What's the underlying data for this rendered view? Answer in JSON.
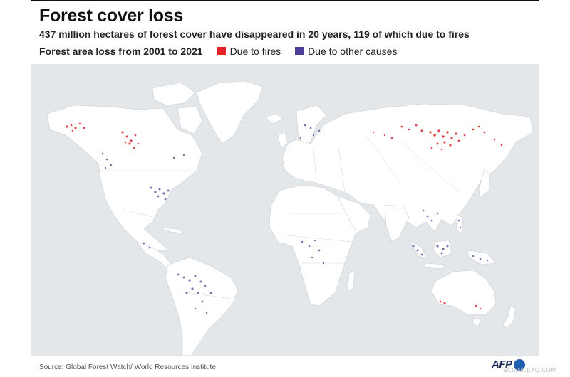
{
  "title": "Forest cover loss",
  "subtitle": "437 million hectares of forest cover have disappeared in 20 years, 119 of which due to fires",
  "legend": {
    "title": "Forest area loss from 2001 to 2021",
    "items": [
      {
        "label": "Due to fires",
        "color": "#e0262a"
      },
      {
        "label": "Due to other causes",
        "color": "#4b3f9a"
      }
    ]
  },
  "source": "Source: Global Forest Watch/ World Resources Institute",
  "logo": "AFP",
  "watermark": "SCIENCEAQ.COM",
  "colors": {
    "ocean": "#e4e7ea",
    "land": "#ffffff",
    "borders": "#d5d8dc"
  }
}
